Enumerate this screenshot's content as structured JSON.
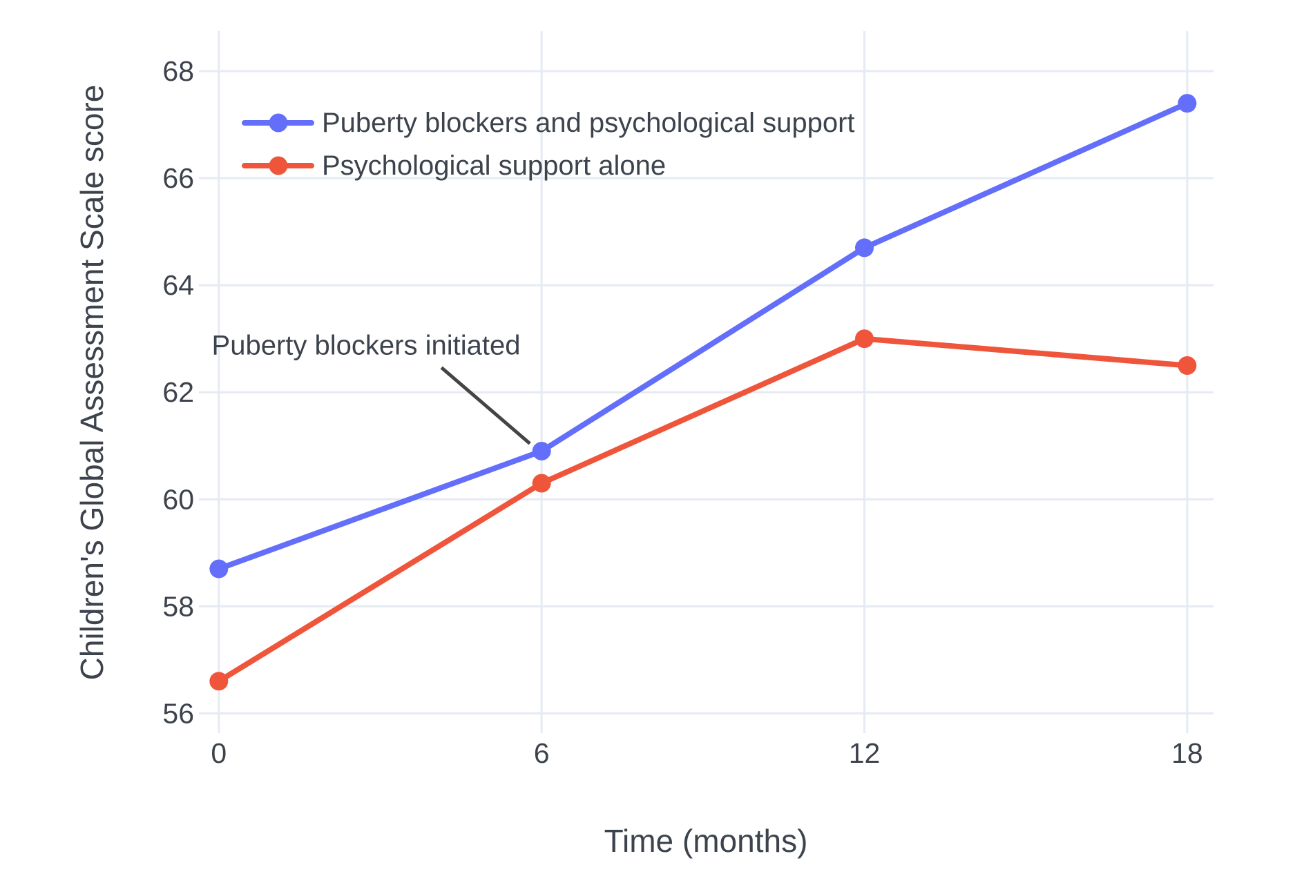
{
  "chart_data": {
    "type": "line",
    "x": [
      0,
      6,
      12,
      18
    ],
    "series": [
      {
        "name": "Puberty blockers and psychological support",
        "short_name": "puberty-blockers-and-psychological-support",
        "values": [
          58.7,
          60.9,
          64.7,
          67.4
        ],
        "color": "#636EFA"
      },
      {
        "name": "Psychological support alone",
        "short_name": "psychological-support-alone",
        "values": [
          56.6,
          60.3,
          63.0,
          62.5
        ],
        "color": "#EF553B"
      }
    ],
    "title": "",
    "xlabel": "Time (months)",
    "ylabel": "Children's Global Assessment Scale score",
    "xticks": [
      0,
      6,
      12,
      18
    ],
    "yticks": [
      56,
      58,
      60,
      62,
      64,
      66,
      68
    ],
    "xlim": [
      -0.37,
      18.49
    ],
    "ylim": [
      55.63,
      68.75
    ],
    "grid": true,
    "legend_position": "inside-top-left",
    "annotation": {
      "text": "Puberty blockers initiated",
      "target_x": 6,
      "target_y": 60.9,
      "target_series": "Puberty blockers and psychological support"
    }
  },
  "colors": {
    "background": "#ffffff",
    "grid": "#E6EAF3",
    "text": "#3D434D",
    "annotation_line": "#444444"
  }
}
